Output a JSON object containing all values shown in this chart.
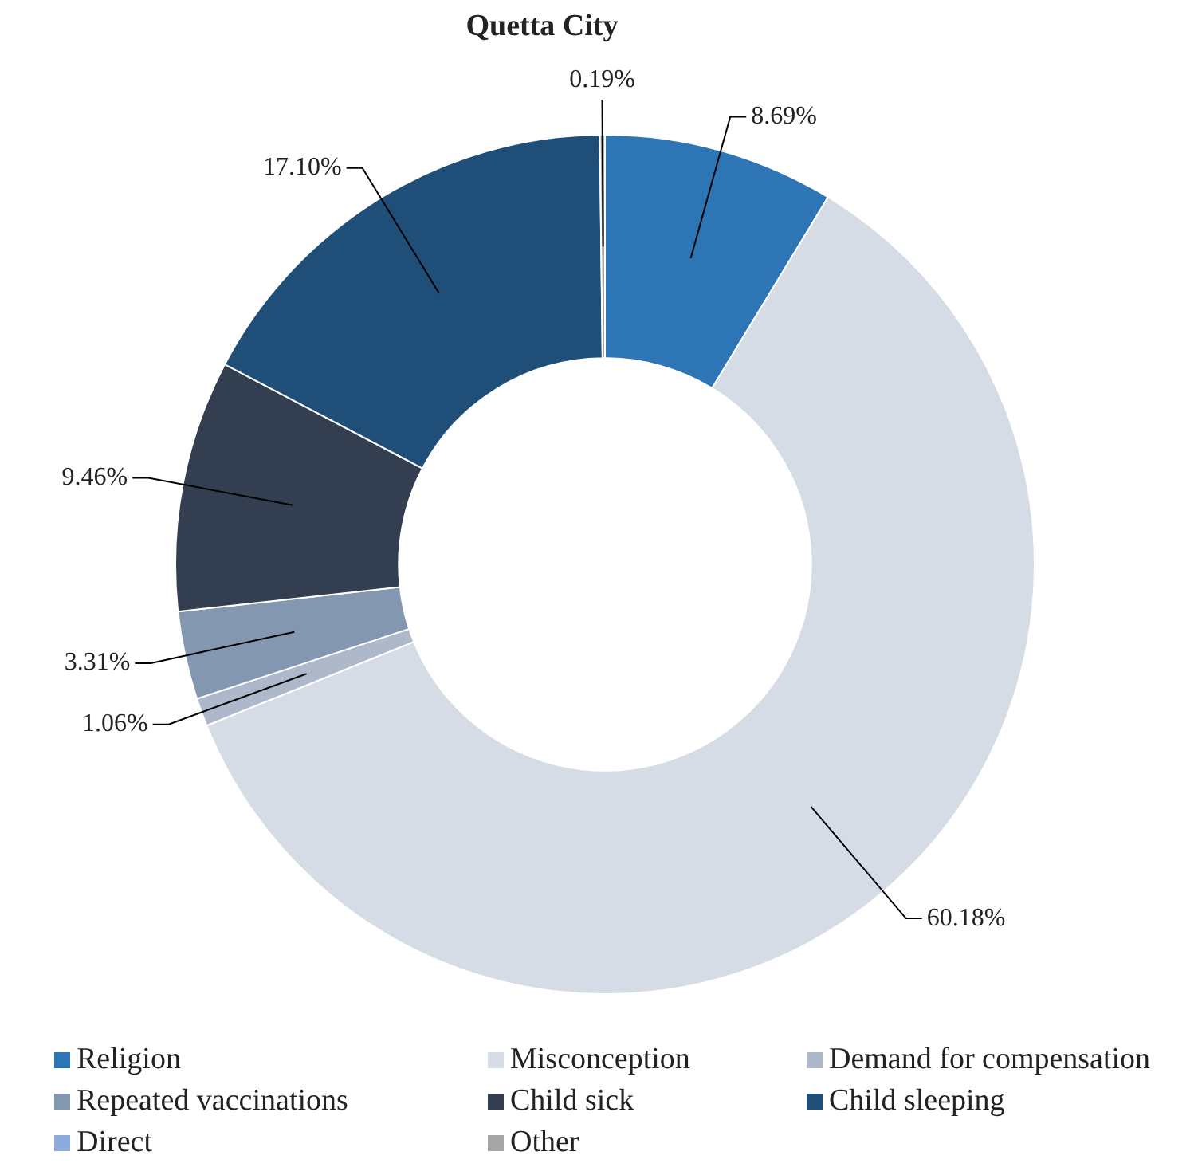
{
  "chart_data": {
    "type": "donut",
    "title": "Quetta City",
    "categories": [
      "Religion",
      "Misconception",
      "Demand for compensation",
      "Repeated vaccinations",
      "Child sick",
      "Child sleeping",
      "Direct",
      "Other"
    ],
    "values": [
      8.69,
      60.18,
      1.06,
      3.31,
      9.46,
      17.1,
      0,
      0.19
    ],
    "value_labels": [
      "8.69%",
      "60.18%",
      "1.06%",
      "3.31%",
      "9.46%",
      "17.10%",
      null,
      "0.19%"
    ],
    "colors": [
      "#2e75b6",
      "#d6dce5",
      "#adb9ca",
      "#8497b0",
      "#333f50",
      "#1f4e79",
      "#8faadc",
      "#a5a5a5"
    ],
    "legend": "bottom"
  }
}
